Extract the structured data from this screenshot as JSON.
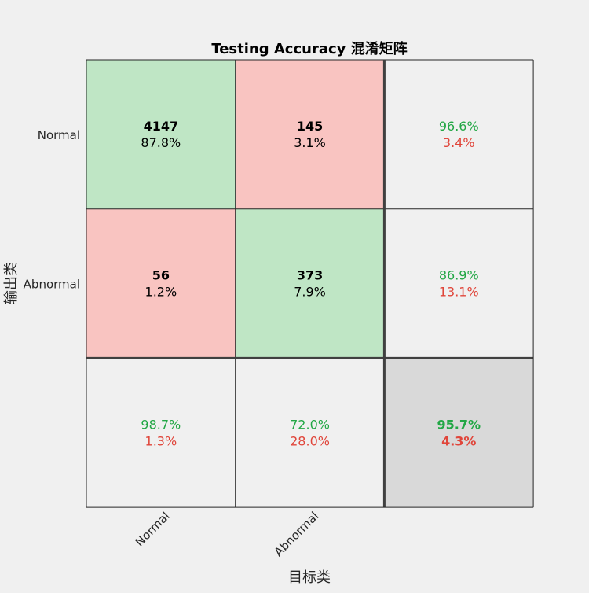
{
  "chart_data": {
    "type": "heatmap",
    "title": "Testing Accuracy 混淆矩阵",
    "xlabel": "目标类",
    "ylabel": "输出类",
    "x_tick_labels": [
      "Normal",
      "Abnormal"
    ],
    "y_tick_labels": [
      "Normal",
      "Abnormal"
    ],
    "matrix": [
      [
        {
          "count": "4147",
          "percent": "87.8%",
          "kind": "correct"
        },
        {
          "count": "145",
          "percent": "3.1%",
          "kind": "wrong"
        }
      ],
      [
        {
          "count": "56",
          "percent": "1.2%",
          "kind": "wrong"
        },
        {
          "count": "373",
          "percent": "7.9%",
          "kind": "correct"
        }
      ]
    ],
    "row_summary": [
      {
        "correct": "96.6%",
        "wrong": "3.4%"
      },
      {
        "correct": "86.9%",
        "wrong": "13.1%"
      }
    ],
    "column_summary": [
      {
        "correct": "98.7%",
        "wrong": "1.3%"
      },
      {
        "correct": "72.0%",
        "wrong": "28.0%"
      }
    ],
    "overall": {
      "correct": "95.7%",
      "wrong": "4.3%"
    }
  },
  "colors": {
    "background": "#f0f0f0",
    "correct_fill": "#bfe6c5",
    "wrong_fill": "#f9c4c1",
    "summary_fill": "#f0f0f0",
    "overall_fill": "#d9d9d9",
    "correct_text": "#22a745",
    "wrong_text": "#e0453a",
    "grid_line": "#262626"
  }
}
